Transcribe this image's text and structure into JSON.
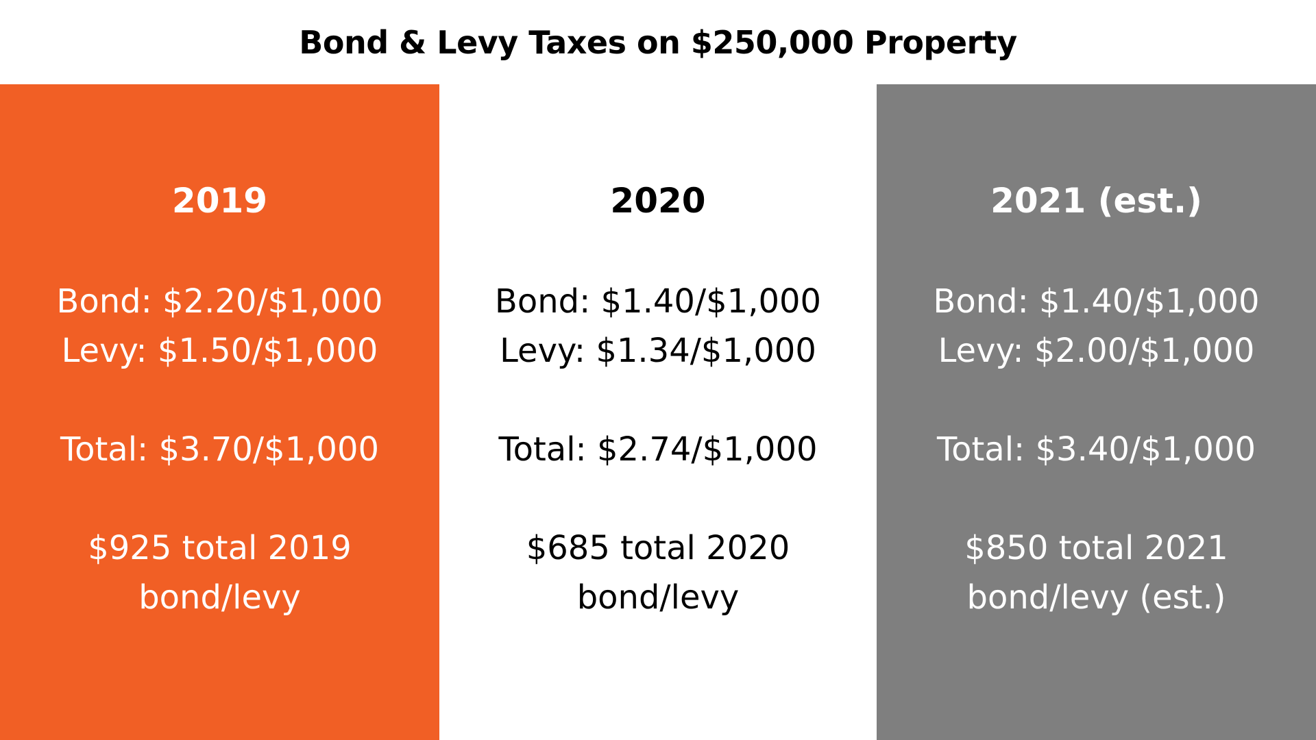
{
  "title": "Bond & Levy Taxes on $250,000 Property",
  "colors": {
    "panel_2019_bg": "#F15F25",
    "panel_2019_text": "#FFFFFF",
    "panel_2020_bg": "#FFFFFF",
    "panel_2020_text": "#000000",
    "panel_2021_bg": "#7F7F7F",
    "panel_2021_text": "#FFFFFF"
  },
  "panels": [
    {
      "year": "2019",
      "bond": "Bond: $2.20/$1,000",
      "levy": "Levy: $1.50/$1,000",
      "total": "Total: $3.70/$1,000",
      "summary_line1": "$925 total 2019",
      "summary_line2": "bond/levy"
    },
    {
      "year": "2020",
      "bond": "Bond: $1.40/$1,000",
      "levy": "Levy: $1.34/$1,000",
      "total": "Total: $2.74/$1,000",
      "summary_line1": "$685 total 2020",
      "summary_line2": "bond/levy"
    },
    {
      "year": "2021 (est.)",
      "bond": "Bond: $1.40/$1,000",
      "levy": "Levy: $2.00/$1,000",
      "total": "Total: $3.40/$1,000",
      "summary_line1": "$850 total 2021",
      "summary_line2": "bond/levy (est.)"
    }
  ]
}
